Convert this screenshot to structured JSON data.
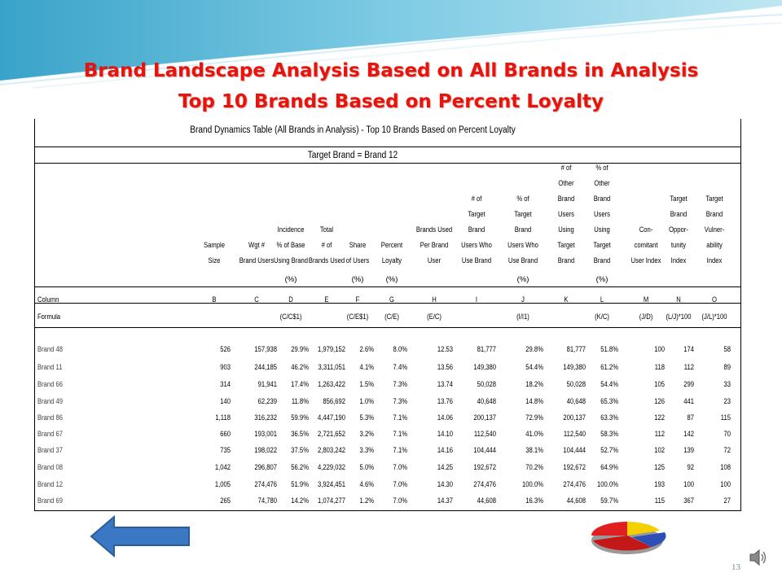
{
  "slide": {
    "title_line1": "Brand Landscape Analysis Based on All Brands in Analysis",
    "title_line2": "Top 10 Brands Based on Percent Loyalty",
    "page_number": "13"
  },
  "table": {
    "caption": "Brand Dynamics Table (All Brands in Analysis) - Top 10 Brands Based on Percent Loyalty",
    "target": "Target Brand = Brand 12",
    "columns": [
      {
        "header": [
          "Sample",
          "Size"
        ],
        "pct": "",
        "letter": "B",
        "formula": ""
      },
      {
        "header": [
          "Wgt #",
          "Brand Users"
        ],
        "pct": "",
        "letter": "C",
        "formula": ""
      },
      {
        "header": [
          "Incidence",
          "% of Base",
          "Using Brand"
        ],
        "pct": "(%)",
        "letter": "D",
        "formula": "(C/C$1)"
      },
      {
        "header": [
          "Total",
          "# of",
          "Brands Used"
        ],
        "pct": "",
        "letter": "E",
        "formula": ""
      },
      {
        "header": [
          "Share",
          "of Users"
        ],
        "pct": "(%)",
        "letter": "F",
        "formula": "(C/E$1)"
      },
      {
        "header": [
          "Percent",
          "Loyalty"
        ],
        "pct": "(%)",
        "letter": "G",
        "formula": "(C/E)"
      },
      {
        "header": [
          "Brands Used",
          "Per Brand",
          "User"
        ],
        "pct": "",
        "letter": "H",
        "formula": "(E/C)"
      },
      {
        "header": [
          "# of",
          "Target",
          "Brand",
          "Users Who",
          "Use Brand"
        ],
        "pct": "",
        "letter": "I",
        "formula": ""
      },
      {
        "header": [
          "% of",
          "Target",
          "Brand",
          "Users Who",
          "Use Brand"
        ],
        "pct": "(%)",
        "letter": "J",
        "formula": "(I/I1)"
      },
      {
        "header": [
          "# of",
          "Other",
          "Brand",
          "Users",
          "Using",
          "Target",
          "Brand"
        ],
        "pct": "",
        "letter": "K",
        "formula": ""
      },
      {
        "header": [
          "% of",
          "Other",
          "Brand",
          "Users",
          "Using",
          "Target",
          "Brand"
        ],
        "pct": "(%)",
        "letter": "L",
        "formula": "(K/C)"
      },
      {
        "header": [
          "Con-",
          "comitant",
          "User Index"
        ],
        "pct": "",
        "letter": "M",
        "formula": "(J/D)"
      },
      {
        "header": [
          "Target",
          "Brand",
          "Oppor-",
          "tunity",
          "Index"
        ],
        "pct": "",
        "letter": "N",
        "formula": "(L/J)*100"
      },
      {
        "header": [
          "Target",
          "Brand",
          "Vulner-",
          "ability",
          "Index"
        ],
        "pct": "",
        "letter": "O",
        "formula": "(J/L)*100"
      }
    ],
    "column_label": "Column",
    "formula_label": "Formula",
    "rows": [
      {
        "brand": "Brand 48",
        "values": [
          "526",
          "157,938",
          "29.9%",
          "1,979,152",
          "2.6%",
          "8.0%",
          "12.53",
          "81,777",
          "29.8%",
          "81,777",
          "51.8%",
          "100",
          "174",
          "58"
        ]
      },
      {
        "brand": "Brand 11",
        "values": [
          "903",
          "244,185",
          "46.2%",
          "3,311,051",
          "4.1%",
          "7.4%",
          "13.56",
          "149,380",
          "54.4%",
          "149,380",
          "61.2%",
          "118",
          "112",
          "89"
        ]
      },
      {
        "brand": "Brand 66",
        "values": [
          "314",
          "91,941",
          "17.4%",
          "1,263,422",
          "1.5%",
          "7.3%",
          "13.74",
          "50,028",
          "18.2%",
          "50,028",
          "54.4%",
          "105",
          "299",
          "33"
        ]
      },
      {
        "brand": "Brand 49",
        "values": [
          "140",
          "62,239",
          "11.8%",
          "856,692",
          "1.0%",
          "7.3%",
          "13.76",
          "40,648",
          "14.8%",
          "40,648",
          "65.3%",
          "126",
          "441",
          "23"
        ]
      },
      {
        "brand": "Brand 86",
        "values": [
          "1,118",
          "316,232",
          "59.9%",
          "4,447,190",
          "5.3%",
          "7.1%",
          "14.06",
          "200,137",
          "72.9%",
          "200,137",
          "63.3%",
          "122",
          "87",
          "115"
        ]
      },
      {
        "brand": "Brand 67",
        "values": [
          "660",
          "193,001",
          "36.5%",
          "2,721,652",
          "3.2%",
          "7.1%",
          "14.10",
          "112,540",
          "41.0%",
          "112,540",
          "58.3%",
          "112",
          "142",
          "70"
        ]
      },
      {
        "brand": "Brand 37",
        "values": [
          "735",
          "198,022",
          "37.5%",
          "2,803,242",
          "3.3%",
          "7.1%",
          "14.16",
          "104,444",
          "38.1%",
          "104,444",
          "52.7%",
          "102",
          "139",
          "72"
        ]
      },
      {
        "brand": "Brand 08",
        "values": [
          "1,042",
          "296,807",
          "56.2%",
          "4,229,032",
          "5.0%",
          "7.0%",
          "14.25",
          "192,672",
          "70.2%",
          "192,672",
          "64.9%",
          "125",
          "92",
          "108"
        ]
      },
      {
        "brand": "Brand 12",
        "values": [
          "1,005",
          "274,476",
          "51.9%",
          "3,924,451",
          "4.6%",
          "7.0%",
          "14.30",
          "274,476",
          "100.0%",
          "274,476",
          "100.0%",
          "193",
          "100",
          "100"
        ]
      },
      {
        "brand": "Brand 69",
        "values": [
          "265",
          "74,780",
          "14.2%",
          "1,074,277",
          "1.2%",
          "7.0%",
          "14.37",
          "44,608",
          "16.3%",
          "44,608",
          "59.7%",
          "115",
          "367",
          "27"
        ]
      }
    ]
  },
  "icons": {
    "back": "left-arrow-icon",
    "chart": "pie-chart-icon",
    "audio": "speaker-icon"
  },
  "colors": {
    "title": "#e8140c",
    "arrow": "#3a78c4"
  }
}
